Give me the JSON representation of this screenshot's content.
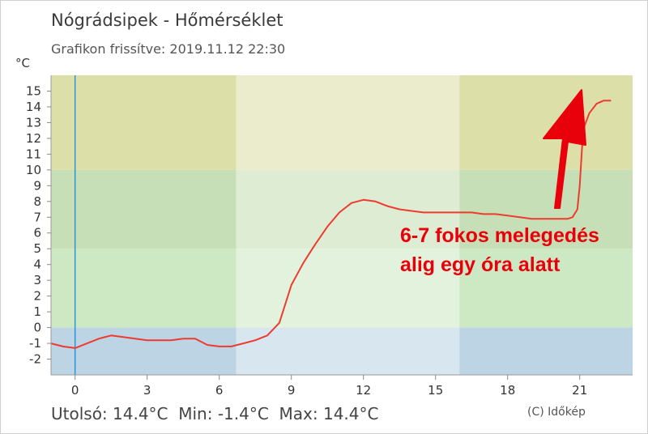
{
  "header": {
    "title": "Nógrádsipek - Hőmérséklet",
    "updated": "Grafikon frissítve: 2019.11.12 22:30"
  },
  "footer": {
    "stats": "Utolsó: 14.4°C  Min: -1.4°C  Max: 14.4°C",
    "credit": "(C) Időkép"
  },
  "annotation": {
    "line1": "6-7 fokos melegedés",
    "line2": "alig egy óra alatt"
  },
  "colors": {
    "series": "#ee3b30",
    "arrow": "#e8000b",
    "now_line": "#2b8fd6",
    "band_blue": "#bcd4e4",
    "band_green_light": "#cde9c4",
    "band_green": "#c6dfb6",
    "band_yellow_light": "#f0f6c4",
    "band_yellow": "#dcdfa8",
    "day_overlay": "#ffffff"
  },
  "chart_data": {
    "type": "line",
    "ylabel": "°C",
    "xlim": [
      -1,
      23.2
    ],
    "ylim": [
      -3,
      16
    ],
    "y_ticks": [
      -2,
      -1,
      0,
      1,
      2,
      3,
      4,
      5,
      6,
      7,
      8,
      9,
      10,
      11,
      12,
      13,
      14,
      15
    ],
    "x_ticks": [
      0,
      3,
      6,
      9,
      12,
      15,
      18,
      21
    ],
    "daylight_hours": [
      6.7,
      16
    ],
    "now_hour": 0,
    "color_bands": [
      {
        "from": -3,
        "to": 0,
        "color": "#bcd4e4"
      },
      {
        "from": 0,
        "to": 5,
        "color": "#cde9c4"
      },
      {
        "from": 5,
        "to": 10,
        "color": "#c6dfb6"
      },
      {
        "from": 10,
        "to": 16,
        "color": "#dcdfa8"
      }
    ],
    "series": [
      {
        "x": [
          -1,
          -0.5,
          0,
          0.5,
          1,
          1.5,
          2,
          2.5,
          3,
          3.5,
          4,
          4.5,
          5,
          5.5,
          6,
          6.5,
          7,
          7.5,
          8,
          8.5,
          9,
          9.5,
          10,
          10.5,
          11,
          11.5,
          12,
          12.5,
          13,
          13.5,
          14,
          14.5,
          15,
          15.5,
          16,
          16.5,
          17,
          17.5,
          18,
          18.5,
          19,
          19.5,
          20,
          20.5,
          20.7,
          20.9,
          21.0,
          21.1,
          21.2,
          21.4,
          21.7,
          22,
          22.3
        ],
        "values": [
          -1.0,
          -1.2,
          -1.3,
          -1.0,
          -0.7,
          -0.5,
          -0.6,
          -0.7,
          -0.8,
          -0.8,
          -0.8,
          -0.7,
          -0.7,
          -1.1,
          -1.2,
          -1.2,
          -1.0,
          -0.8,
          -0.5,
          0.3,
          2.7,
          4.1,
          5.3,
          6.4,
          7.3,
          7.9,
          8.1,
          8.0,
          7.7,
          7.5,
          7.4,
          7.3,
          7.3,
          7.3,
          7.3,
          7.3,
          7.2,
          7.2,
          7.1,
          7.0,
          6.9,
          6.9,
          6.9,
          6.9,
          7.0,
          7.5,
          9.0,
          11.5,
          12.8,
          13.6,
          14.2,
          14.4,
          14.4
        ]
      }
    ]
  }
}
